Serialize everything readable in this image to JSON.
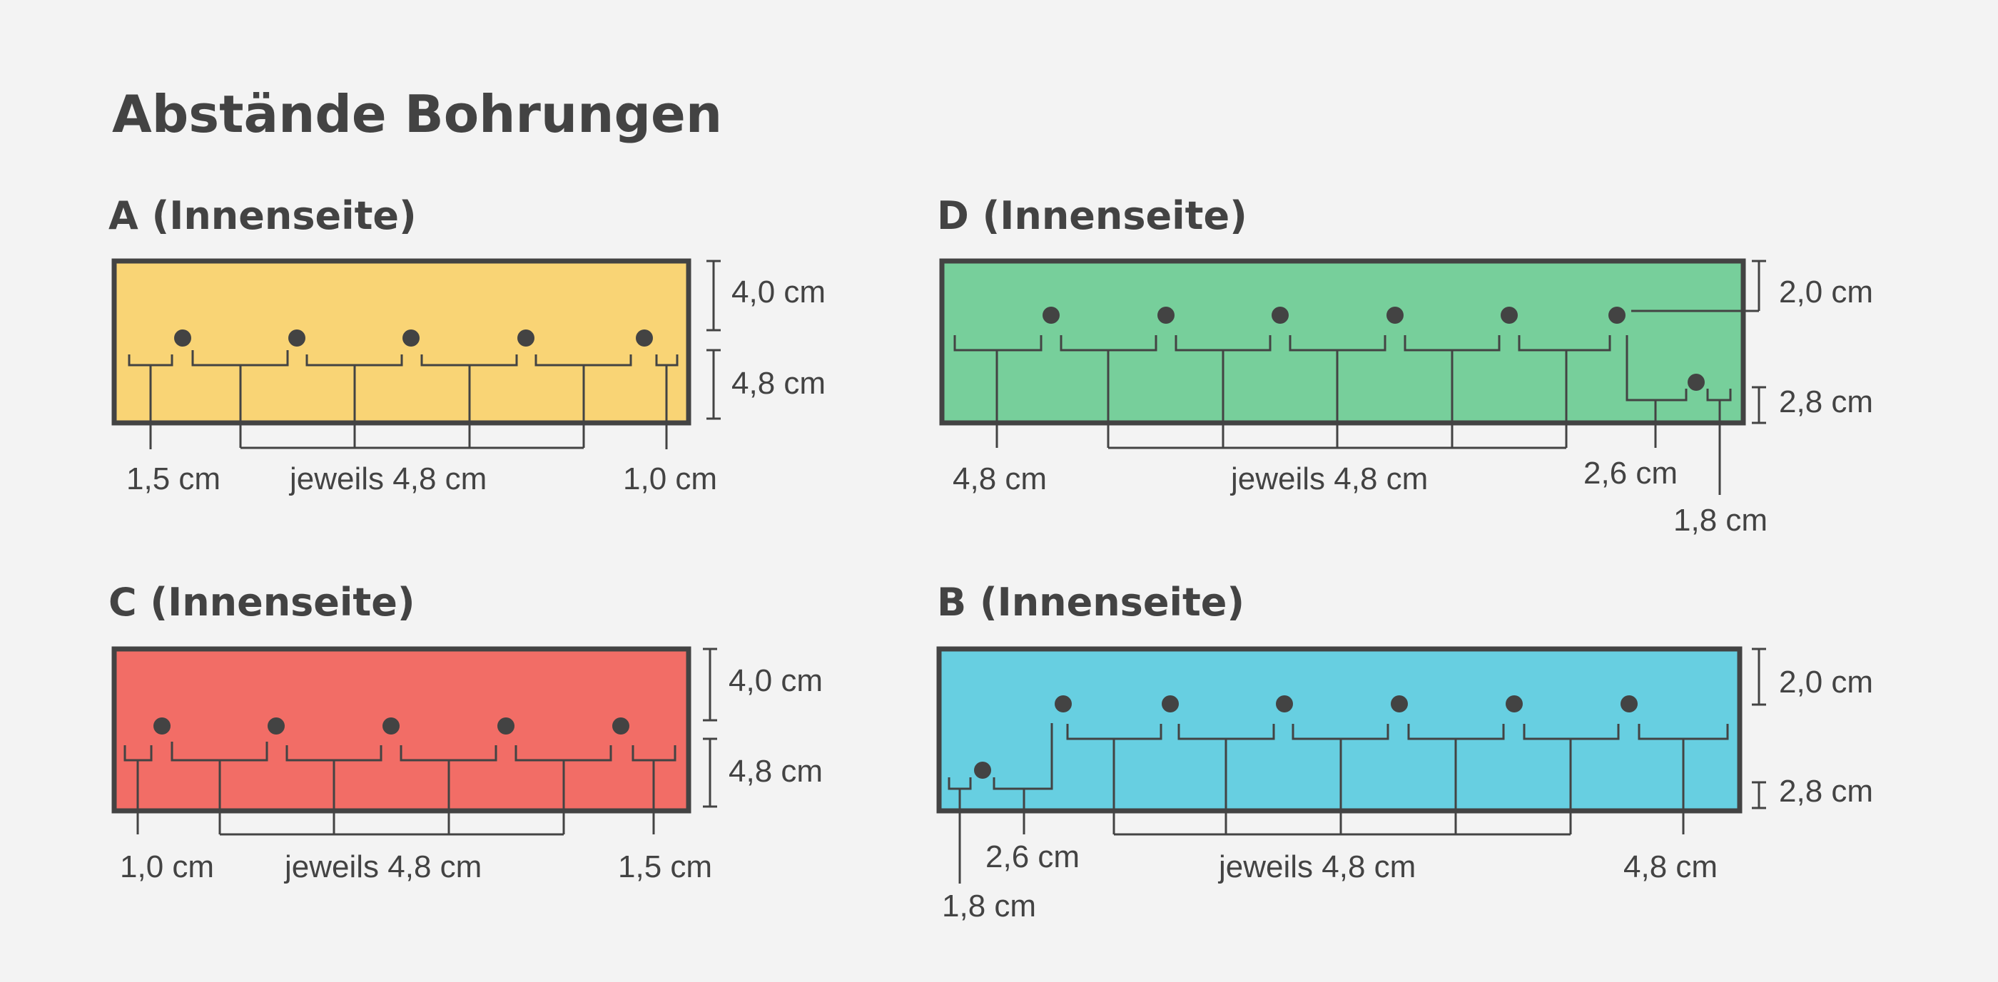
{
  "title": "Abstände Bohrungen",
  "colors": {
    "background": "#f3f3f3",
    "ink": "#434343",
    "panel_A": "#f9d475",
    "panel_D": "#77cf9b",
    "panel_C": "#f26d66",
    "panel_B": "#67cfe1"
  },
  "panels": {
    "A": {
      "label": "A (Innenseite)",
      "dim_top": "4,0 cm",
      "dim_bottom": "4,8 cm",
      "dim_left": "1,5 cm",
      "dim_each": "jeweils 4,8 cm",
      "dim_right": "1,0 cm",
      "hole_count": 5
    },
    "D": {
      "label": "D (Innenseite)",
      "dim_top": "2,0 cm",
      "dim_bottom": "2,8 cm",
      "dim_left": "4,8 cm",
      "dim_each": "jeweils 4,8 cm",
      "dim_offset": "2,6 cm",
      "dim_small": "1,8 cm",
      "hole_count": 7
    },
    "C": {
      "label": "C (Innenseite)",
      "dim_top": "4,0 cm",
      "dim_bottom": "4,8 cm",
      "dim_left": "1,0 cm",
      "dim_each": "jeweils 4,8 cm",
      "dim_right": "1,5 cm",
      "hole_count": 5
    },
    "B": {
      "label": "B (Innenseite)",
      "dim_top": "2,0 cm",
      "dim_bottom": "2,8 cm",
      "dim_offset": "2,6 cm",
      "dim_small": "1,8 cm",
      "dim_each": "jeweils 4,8 cm",
      "dim_right": "4,8 cm",
      "hole_count": 7
    }
  }
}
